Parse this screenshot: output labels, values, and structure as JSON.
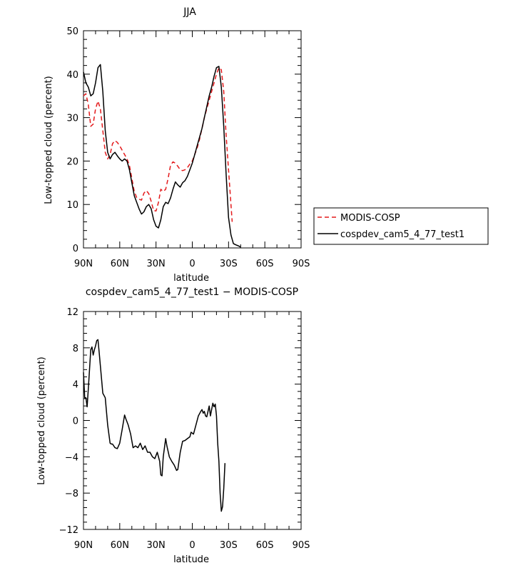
{
  "chart_data": [
    {
      "type": "line",
      "title": "JJA",
      "xlabel": "latitude",
      "ylabel": "Low-topped cloud (percent)",
      "ylim": [
        0,
        50
      ],
      "yticks": [
        0,
        10,
        20,
        30,
        40,
        50
      ],
      "xlim": [
        90,
        -90
      ],
      "xticks": [
        {
          "value": 90,
          "label": "90N"
        },
        {
          "value": 60,
          "label": "60N"
        },
        {
          "value": 30,
          "label": "30N"
        },
        {
          "value": 0,
          "label": "0"
        },
        {
          "value": -30,
          "label": "30S"
        },
        {
          "value": -60,
          "label": "60S"
        },
        {
          "value": -90,
          "label": "90S"
        }
      ],
      "legend_position": "right",
      "series": [
        {
          "name": "MODIS-COSP",
          "color": "#e41a1c",
          "dash": "dashed",
          "points": [
            [
              90,
              35.0
            ],
            [
              88,
              35.5
            ],
            [
              86,
              33
            ],
            [
              84,
              28
            ],
            [
              82,
              28.5
            ],
            [
              80,
              32
            ],
            [
              78,
              33.8
            ],
            [
              76,
              32
            ],
            [
              74,
              27
            ],
            [
              72,
              22
            ],
            [
              70,
              20.5
            ],
            [
              68,
              21.5
            ],
            [
              66,
              24
            ],
            [
              64,
              24.7
            ],
            [
              62,
              24.3
            ],
            [
              60,
              23.5
            ],
            [
              58,
              22.5
            ],
            [
              56,
              21.5
            ],
            [
              54,
              20.5
            ],
            [
              52,
              19
            ],
            [
              50,
              16
            ],
            [
              48,
              13
            ],
            [
              46,
              11.6
            ],
            [
              44,
              11.2
            ],
            [
              42,
              11
            ],
            [
              40,
              12.6
            ],
            [
              38,
              13.2
            ],
            [
              36,
              12.5
            ],
            [
              34,
              10.7
            ],
            [
              32,
              8.6
            ],
            [
              30,
              8.5
            ],
            [
              28,
              10.5
            ],
            [
              26,
              13.5
            ],
            [
              24,
              13
            ],
            [
              22,
              13.5
            ],
            [
              20,
              16
            ],
            [
              18,
              19
            ],
            [
              16,
              19.8
            ],
            [
              14,
              19.5
            ],
            [
              12,
              18.8
            ],
            [
              10,
              18
            ],
            [
              8,
              17.8
            ],
            [
              6,
              18
            ],
            [
              4,
              18.5
            ],
            [
              2,
              19.3
            ],
            [
              0,
              20
            ],
            [
              -2,
              21.5
            ],
            [
              -4,
              23
            ],
            [
              -6,
              25
            ],
            [
              -8,
              27.5
            ],
            [
              -10,
              30
            ],
            [
              -12,
              32
            ],
            [
              -14,
              34
            ],
            [
              -16,
              36
            ],
            [
              -18,
              38
            ],
            [
              -20,
              40
            ],
            [
              -22,
              41.5
            ],
            [
              -24,
              41
            ],
            [
              -26,
              36
            ],
            [
              -28,
              26
            ],
            [
              -30,
              18
            ],
            [
              -32,
              10
            ],
            [
              -33,
              6
            ]
          ]
        },
        {
          "name": "cospdev_cam5_4_77_test1",
          "color": "#000000",
          "dash": "solid",
          "points": [
            [
              90,
              40.5
            ],
            [
              88,
              38
            ],
            [
              86,
              37
            ],
            [
              84,
              35
            ],
            [
              82,
              35.5
            ],
            [
              80,
              38
            ],
            [
              78,
              41.5
            ],
            [
              76,
              42.2
            ],
            [
              74,
              36
            ],
            [
              72,
              27
            ],
            [
              70,
              22
            ],
            [
              68,
              20.5
            ],
            [
              66,
              21.5
            ],
            [
              64,
              22
            ],
            [
              62,
              21.2
            ],
            [
              60,
              20.5
            ],
            [
              58,
              20
            ],
            [
              56,
              20.5
            ],
            [
              54,
              20
            ],
            [
              52,
              18
            ],
            [
              50,
              15
            ],
            [
              48,
              12
            ],
            [
              46,
              10.5
            ],
            [
              44,
              9
            ],
            [
              42,
              7.8
            ],
            [
              40,
              8.3
            ],
            [
              38,
              9.5
            ],
            [
              36,
              10
            ],
            [
              34,
              9
            ],
            [
              32,
              6.5
            ],
            [
              30,
              5
            ],
            [
              28,
              4.6
            ],
            [
              26,
              6.5
            ],
            [
              24,
              9.5
            ],
            [
              22,
              10.5
            ],
            [
              20,
              10.2
            ],
            [
              18,
              11.5
            ],
            [
              16,
              13.5
            ],
            [
              14,
              15.2
            ],
            [
              12,
              14.5
            ],
            [
              10,
              14
            ],
            [
              8,
              15
            ],
            [
              6,
              15.5
            ],
            [
              4,
              16.5
            ],
            [
              2,
              18
            ],
            [
              0,
              19.5
            ],
            [
              -2,
              21.5
            ],
            [
              -4,
              23.5
            ],
            [
              -6,
              25.5
            ],
            [
              -8,
              27.5
            ],
            [
              -10,
              30
            ],
            [
              -12,
              32.5
            ],
            [
              -14,
              35
            ],
            [
              -16,
              37
            ],
            [
              -18,
              39.5
            ],
            [
              -20,
              41.5
            ],
            [
              -22,
              41.8
            ],
            [
              -24,
              37
            ],
            [
              -26,
              28
            ],
            [
              -28,
              17
            ],
            [
              -30,
              7
            ],
            [
              -32,
              3
            ],
            [
              -34,
              1
            ],
            [
              -36,
              0.7
            ],
            [
              -38,
              0.5
            ],
            [
              -40,
              0.2
            ]
          ]
        }
      ]
    },
    {
      "type": "line",
      "title": "cospdev_cam5_4_77_test1 − MODIS-COSP",
      "xlabel": "latitude",
      "ylabel": "Low-topped cloud (percent)",
      "ylim": [
        -12,
        12
      ],
      "yticks": [
        -12,
        -8,
        -4,
        0,
        4,
        8,
        12
      ],
      "xlim": [
        90,
        -90
      ],
      "xticks": [
        {
          "value": 90,
          "label": "90N"
        },
        {
          "value": 60,
          "label": "60N"
        },
        {
          "value": 30,
          "label": "30N"
        },
        {
          "value": 0,
          "label": "0"
        },
        {
          "value": -30,
          "label": "30S"
        },
        {
          "value": -60,
          "label": "60S"
        },
        {
          "value": -90,
          "label": "90S"
        }
      ],
      "series": [
        {
          "color": "#000000",
          "dash": "solid",
          "points": [
            [
              90,
              5.3
            ],
            [
              89,
              2.5
            ],
            [
              88,
              2.5
            ],
            [
              87,
              1.5
            ],
            [
              86,
              3.5
            ],
            [
              84,
              7.8
            ],
            [
              83,
              8.1
            ],
            [
              82,
              7.2
            ],
            [
              81,
              7.8
            ],
            [
              80,
              8.2
            ],
            [
              79,
              8.8
            ],
            [
              78,
              8.9
            ],
            [
              77,
              7.5
            ],
            [
              75,
              4.5
            ],
            [
              74,
              3
            ],
            [
              72,
              2.5
            ],
            [
              70,
              -0.5
            ],
            [
              68,
              -2.5
            ],
            [
              67,
              -2.6
            ],
            [
              66,
              -2.6
            ],
            [
              64,
              -3
            ],
            [
              62,
              -3.1
            ],
            [
              60,
              -2.5
            ],
            [
              58,
              -1
            ],
            [
              56,
              0.6
            ],
            [
              55,
              0.2
            ],
            [
              53,
              -0.5
            ],
            [
              51,
              -1.5
            ],
            [
              49,
              -3
            ],
            [
              47,
              -2.8
            ],
            [
              45,
              -3
            ],
            [
              43,
              -2.5
            ],
            [
              41,
              -3.2
            ],
            [
              39,
              -2.8
            ],
            [
              37,
              -3.5
            ],
            [
              35,
              -3.5
            ],
            [
              33,
              -4
            ],
            [
              31,
              -4.2
            ],
            [
              29,
              -3.5
            ],
            [
              27,
              -4.5
            ],
            [
              26,
              -6
            ],
            [
              25,
              -6.1
            ],
            [
              24,
              -4
            ],
            [
              22,
              -2
            ],
            [
              21,
              -2.8
            ],
            [
              19,
              -4
            ],
            [
              17,
              -4.5
            ],
            [
              15,
              -4.9
            ],
            [
              13,
              -5.5
            ],
            [
              12,
              -5.4
            ],
            [
              10,
              -3.5
            ],
            [
              8,
              -2.3
            ],
            [
              6,
              -2.2
            ],
            [
              4,
              -2
            ],
            [
              2,
              -1.8
            ],
            [
              1,
              -1.3
            ],
            [
              -1,
              -1.5
            ],
            [
              -3,
              -0.5
            ],
            [
              -5,
              0.5
            ],
            [
              -7,
              1.0
            ],
            [
              -8,
              1.2
            ],
            [
              -9,
              0.8
            ],
            [
              -10,
              1.0
            ],
            [
              -11,
              0.5
            ],
            [
              -12,
              0.4
            ],
            [
              -13,
              1.0
            ],
            [
              -14,
              1.6
            ],
            [
              -15,
              0.5
            ],
            [
              -16,
              1.2
            ],
            [
              -17,
              1.9
            ],
            [
              -18,
              1.5
            ],
            [
              -19,
              1.8
            ],
            [
              -20,
              0.5
            ],
            [
              -21,
              -2.5
            ],
            [
              -22,
              -4.5
            ],
            [
              -23,
              -8
            ],
            [
              -24,
              -10
            ],
            [
              -25,
              -9.5
            ],
            [
              -26,
              -7.5
            ],
            [
              -27,
              -4.7
            ]
          ]
        }
      ]
    }
  ]
}
